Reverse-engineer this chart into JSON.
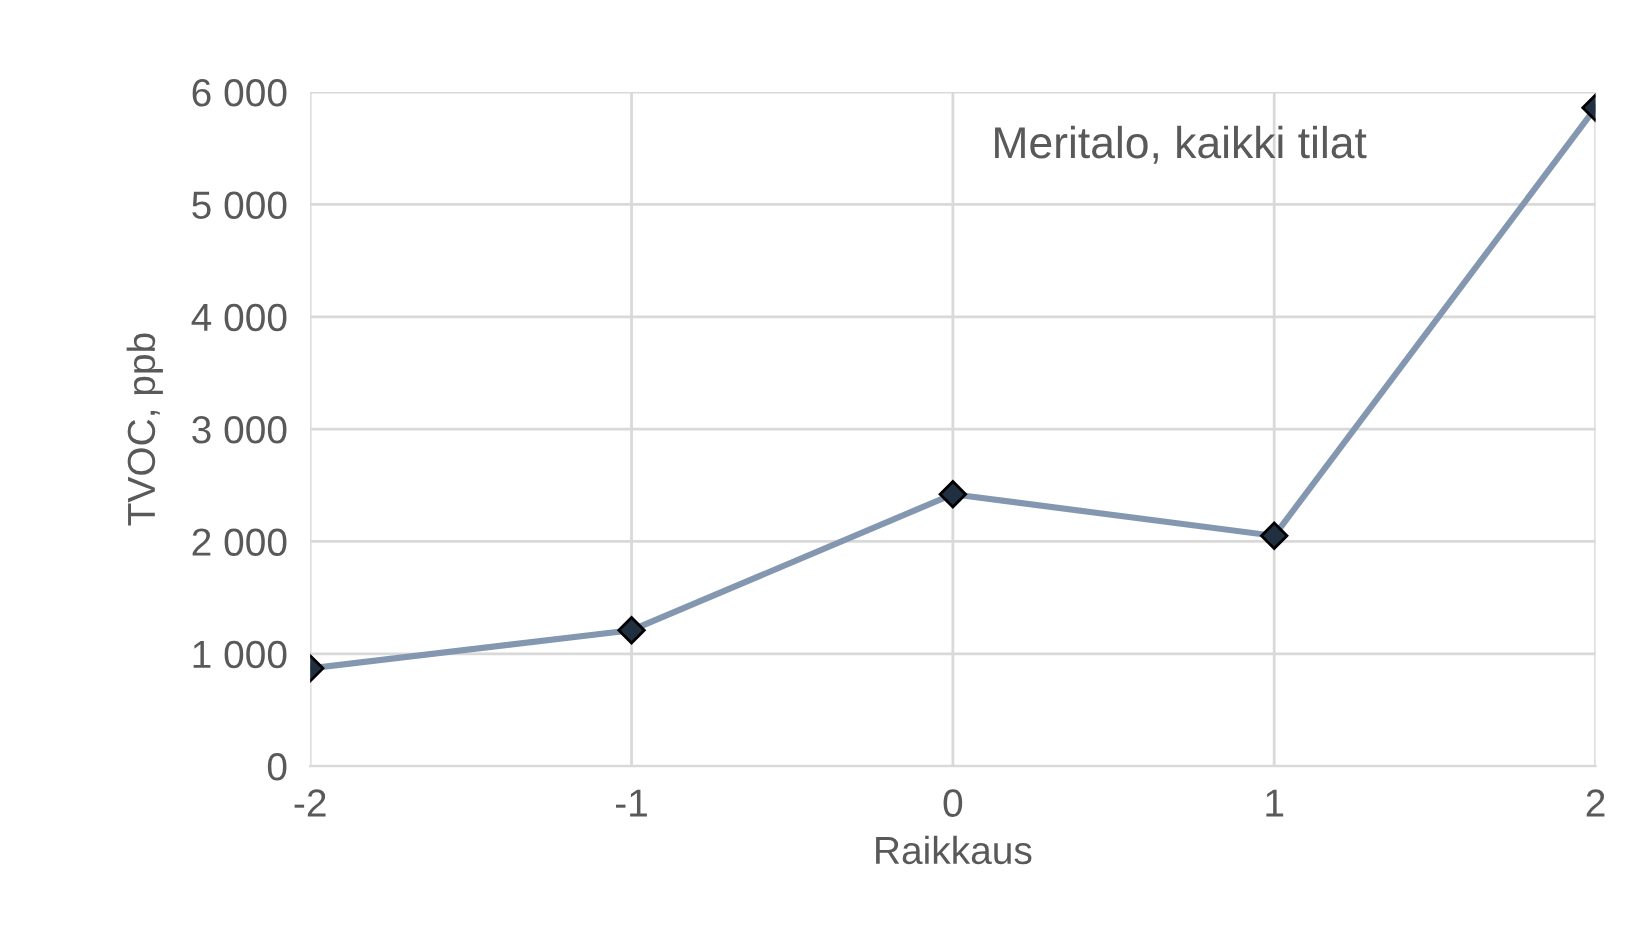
{
  "chart_data": {
    "type": "line",
    "xlabel": "Raikkaus",
    "ylabel": "TVOC, ppb",
    "annotations": [
      "Meritalo, kaikki tilat"
    ],
    "x": [
      -2,
      -1,
      0,
      1,
      2
    ],
    "series": [
      {
        "color": "#8497b0",
        "values": [
          870,
          1210,
          2420,
          2050,
          5860
        ]
      }
    ],
    "marker": "diamond",
    "line_style": "solid",
    "grid": true,
    "legend": false,
    "xlim": [
      -2,
      2
    ],
    "xticks": [
      -2,
      -1,
      0,
      1,
      2
    ],
    "ylim": [
      0,
      6000
    ],
    "yticks": [
      0,
      {
        "value": 1000,
        "label": "1 000"
      },
      {
        "value": 2000,
        "label": "2 000"
      },
      {
        "value": 3000,
        "label": "3 000"
      },
      {
        "value": 4000,
        "label": "4 000"
      },
      {
        "value": 5000,
        "label": "5 000"
      },
      {
        "value": 6000,
        "label": "6 000"
      }
    ]
  }
}
